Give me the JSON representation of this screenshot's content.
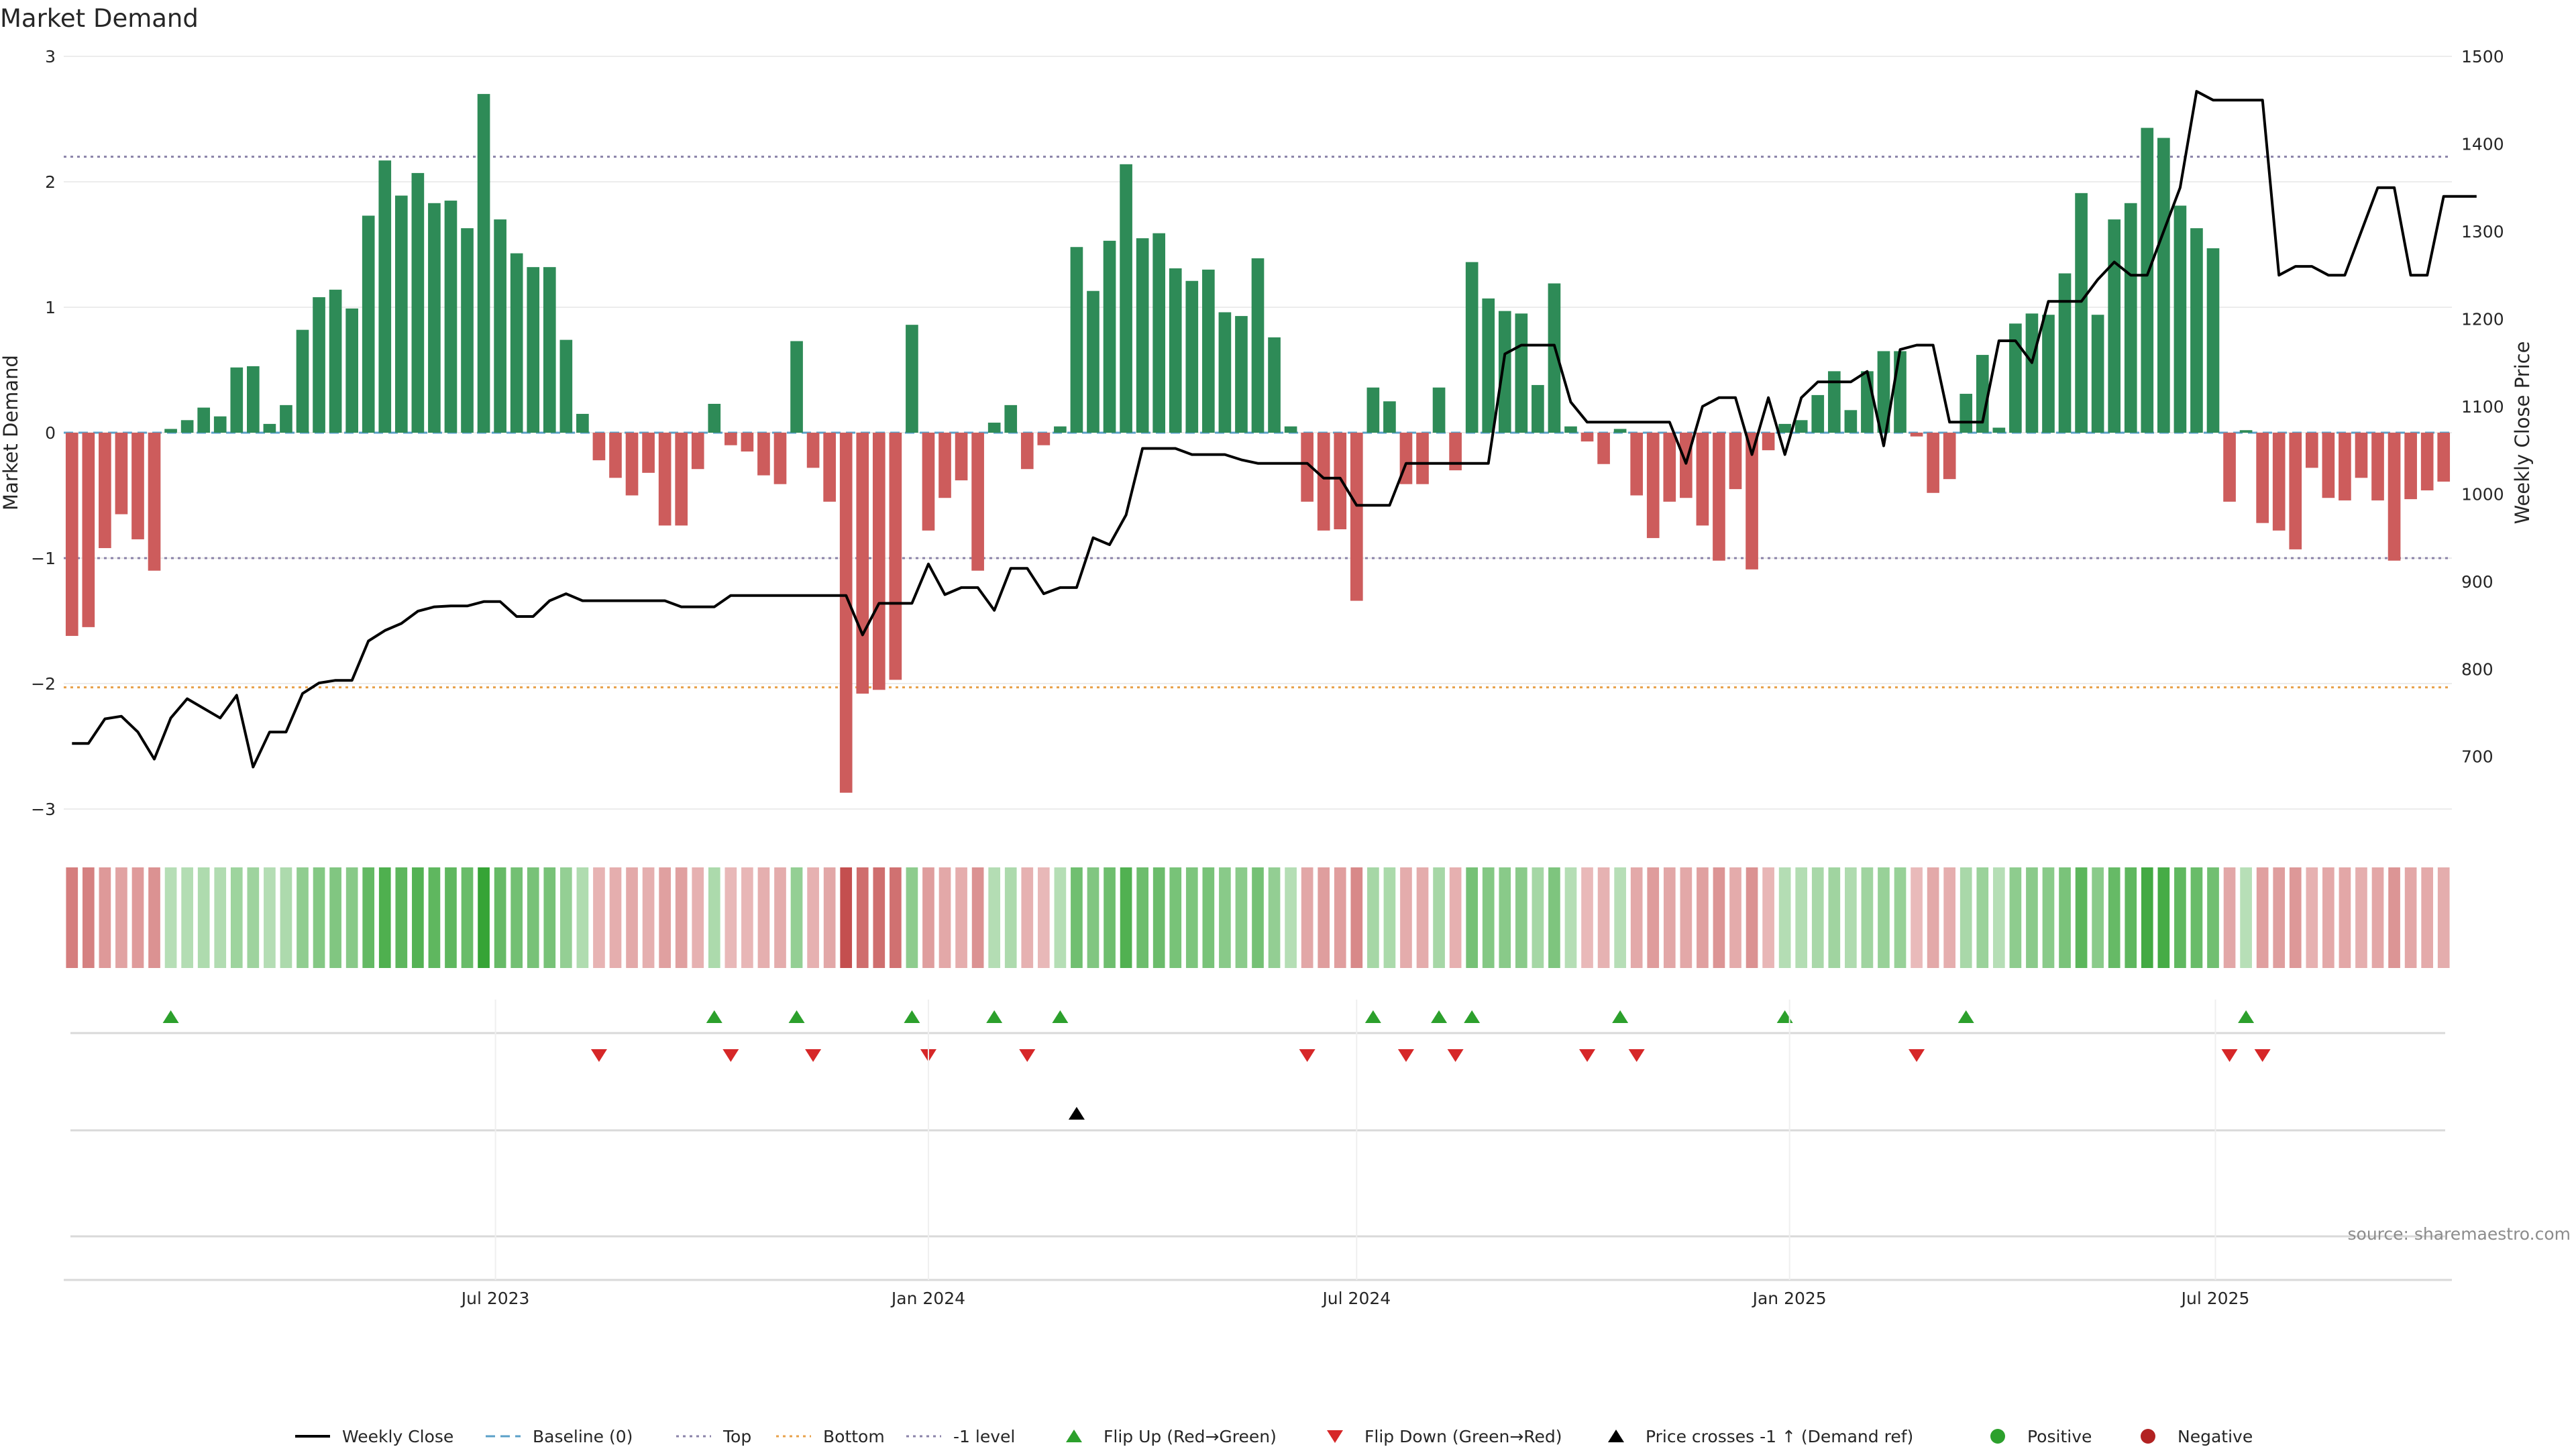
{
  "chart_data": {
    "type": "bar",
    "title": "Market Demand",
    "ylabel": "Market Demand",
    "y2label": "Weekly Close Price",
    "ylim": [
      -3,
      3
    ],
    "y2lim": [
      640,
      1500
    ],
    "yticks": [
      3,
      2,
      1,
      0,
      -1,
      -2,
      -3
    ],
    "ytick_labels": [
      "3",
      "2",
      "1",
      "0",
      "−1",
      "−2",
      "−3"
    ],
    "y2ticks": [
      1500,
      1400,
      1300,
      1200,
      1100,
      1000,
      900,
      800,
      700
    ],
    "x_start": "2023-01-02",
    "x_step_days": 7,
    "x_ticks": [
      {
        "date": "2023-07-01",
        "label": "Jul 2023"
      },
      {
        "date": "2024-01-01",
        "label": "Jan 2024"
      },
      {
        "date": "2024-07-01",
        "label": "Jul 2024"
      },
      {
        "date": "2025-01-01",
        "label": "Jan 2025"
      },
      {
        "date": "2025-07-01",
        "label": "Jul 2025"
      }
    ],
    "reference_lines": [
      {
        "name": "Top",
        "value": 2.2,
        "color": "#8a82a8",
        "style": "dotted"
      },
      {
        "name": "Bottom",
        "value": -2.03,
        "color": "#e8a14a",
        "style": "dotted"
      },
      {
        "name": "-1 level",
        "value": -1,
        "color": "#8a82a8",
        "style": "dotted"
      },
      {
        "name": "Baseline (0)",
        "value": 0,
        "color": "#5aa0c8",
        "style": "dashed"
      }
    ],
    "series": [
      {
        "name": "Market Demand",
        "type": "bar",
        "values": [
          -1.62,
          -1.55,
          -0.92,
          -0.65,
          -0.85,
          -1.1,
          0.03,
          0.1,
          0.2,
          0.13,
          0.52,
          0.53,
          0.07,
          0.22,
          0.82,
          1.08,
          1.14,
          0.99,
          1.73,
          2.17,
          1.89,
          2.07,
          1.83,
          1.85,
          1.63,
          2.7,
          1.7,
          1.43,
          1.32,
          1.32,
          0.74,
          0.15,
          -0.22,
          -0.36,
          -0.5,
          -0.32,
          -0.74,
          -0.74,
          -0.29,
          0.23,
          -0.1,
          -0.15,
          -0.34,
          -0.41,
          0.73,
          -0.28,
          -0.55,
          -2.87,
          -2.08,
          -2.05,
          -1.97,
          0.86,
          -0.78,
          -0.52,
          -0.38,
          -1.1,
          0.08,
          0.22,
          -0.29,
          -0.1,
          0.05,
          1.48,
          1.13,
          1.53,
          2.14,
          1.55,
          1.59,
          1.31,
          1.21,
          1.3,
          0.96,
          0.93,
          1.39,
          0.76,
          0.05,
          -0.55,
          -0.78,
          -0.77,
          -1.34,
          0.36,
          0.25,
          -0.41,
          -0.41,
          0.36,
          -0.3,
          1.36,
          1.07,
          0.97,
          0.95,
          0.38,
          1.19,
          0.05,
          -0.07,
          -0.25,
          0.03,
          -0.5,
          -0.84,
          -0.55,
          -0.52,
          -0.74,
          -1.02,
          -0.45,
          -1.09,
          -0.14,
          0.07,
          0.1,
          0.3,
          0.49,
          0.18,
          0.49,
          0.65,
          0.65,
          -0.03,
          -0.48,
          -0.37,
          0.31,
          0.62,
          0.04,
          0.87,
          0.95,
          0.94,
          1.27,
          1.91,
          0.94,
          1.7,
          1.83,
          2.43,
          2.35,
          1.81,
          1.63,
          1.47,
          -0.55,
          0.02,
          -0.72,
          -0.78,
          -0.93,
          -0.28,
          -0.52,
          -0.54,
          -0.36,
          -0.54,
          -1.02,
          -0.53,
          -0.46,
          -0.39
        ]
      },
      {
        "name": "Weekly Close",
        "type": "line",
        "axis": "y2",
        "values": [
          715,
          715,
          743,
          746,
          728,
          697,
          744,
          766,
          755,
          744,
          770,
          688,
          728,
          728,
          772,
          784,
          787,
          787,
          832,
          844,
          852,
          866,
          871,
          872,
          872,
          877,
          877,
          860,
          860,
          878,
          886,
          878,
          878,
          878,
          878,
          878,
          878,
          871,
          871,
          871,
          884,
          884,
          884,
          884,
          884,
          884,
          884,
          884,
          839,
          875,
          875,
          875,
          920,
          885,
          893,
          893,
          867,
          915,
          915,
          886,
          893,
          893,
          950,
          942,
          976,
          1052,
          1052,
          1052,
          1045,
          1045,
          1045,
          1039,
          1035,
          1035,
          1035,
          1035,
          1018,
          1018,
          987,
          987,
          987,
          1035,
          1035,
          1035,
          1035,
          1035,
          1035,
          1160,
          1170,
          1170,
          1170,
          1105,
          1082,
          1082,
          1082,
          1082,
          1082,
          1082,
          1035,
          1100,
          1110,
          1110,
          1045,
          1110,
          1045,
          1110,
          1128,
          1128,
          1128,
          1140,
          1055,
          1165,
          1170,
          1170,
          1082,
          1082,
          1082,
          1175,
          1175,
          1150,
          1220,
          1220,
          1220,
          1245,
          1265,
          1250,
          1250,
          1300,
          1350,
          1460,
          1450,
          1450,
          1450,
          1450,
          1250,
          1260,
          1260,
          1250,
          1250,
          1300,
          1350,
          1350,
          1250,
          1250,
          1340,
          1340,
          1340
        ]
      },
      {
        "name": "Flip Up (Red→Green)",
        "type": "marker",
        "weeks": [
          6,
          39,
          44,
          51,
          56,
          60,
          79,
          83,
          85,
          94,
          104,
          115,
          132
        ]
      },
      {
        "name": "Flip Down (Green→Red)",
        "type": "marker",
        "weeks": [
          32,
          40,
          45,
          52,
          58,
          75,
          81,
          84,
          92,
          95,
          112,
          131,
          133
        ]
      },
      {
        "name": "Price crosses -1 ↑ (Demand ref)",
        "type": "marker",
        "weeks": [
          61
        ]
      }
    ],
    "legend": {
      "placement": "bottom",
      "entries": [
        {
          "label": "Weekly Close",
          "kind": "line",
          "color": "#000000"
        },
        {
          "label": "Baseline (0)",
          "kind": "dashed",
          "color": "#5aa0c8"
        },
        {
          "label": "Top",
          "kind": "dotted",
          "color": "#8a82a8"
        },
        {
          "label": "Bottom",
          "kind": "dotted",
          "color": "#e8a14a"
        },
        {
          "label": "-1 level",
          "kind": "dotted",
          "color": "#8a82a8"
        },
        {
          "label": "Flip Up (Red→Green)",
          "kind": "up",
          "color": "#2ca02c"
        },
        {
          "label": "Flip Down (Green→Red)",
          "kind": "down",
          "color": "#d62728"
        },
        {
          "label": "Price crosses -1 ↑ (Demand ref)",
          "kind": "up",
          "color": "#000000"
        },
        {
          "label": "Positive",
          "kind": "dot",
          "color": "#2ca02c"
        },
        {
          "label": "Negative",
          "kind": "dot",
          "color": "#b22222"
        }
      ]
    },
    "colors": {
      "positive": "#2e8b57",
      "negative": "#cd5c5c",
      "grid": "#ececec",
      "line": "#000000",
      "flip_up": "#2ca02c",
      "flip_down": "#d62728"
    },
    "grid": true,
    "source": "source: sharemaestro.com"
  }
}
